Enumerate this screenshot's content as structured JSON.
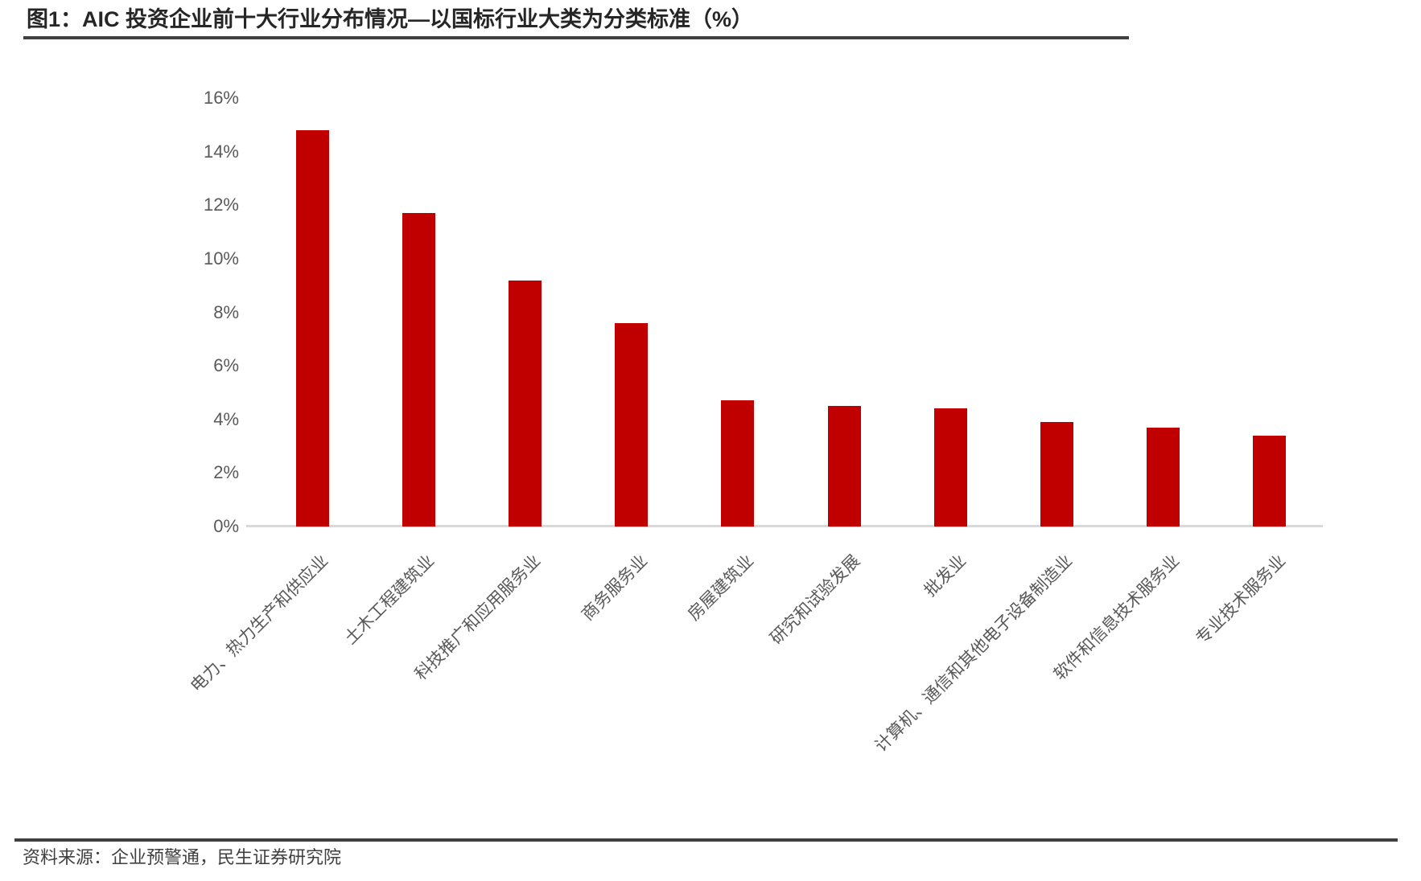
{
  "header": {
    "title": "图1：AIC 投资企业前十大行业分布情况—以国标行业大类为分类标准（%）"
  },
  "footer": {
    "source": "资料来源：企业预警通，民生证券研究院"
  },
  "colors": {
    "bar": "#c00000",
    "axis_line": "#d9d9d9",
    "tick_text": "#595959",
    "title_text": "#262626",
    "rule": "#404040"
  },
  "chart_data": {
    "type": "bar",
    "title": "AIC 投资企业前十大行业分布情况—以国标行业大类为分类标准（%）",
    "categories": [
      "电力、热力生产和供应业",
      "土木工程建筑业",
      "科技推广和应用服务业",
      "商务服务业",
      "房屋建筑业",
      "研究和试验发展",
      "批发业",
      "计算机、通信和其他电子设备制造业",
      "软件和信息技术服务业",
      "专业技术服务业"
    ],
    "values": [
      14.8,
      11.7,
      9.2,
      7.6,
      4.7,
      4.5,
      4.4,
      3.9,
      3.7,
      3.4
    ],
    "xlabel": "",
    "ylabel": "",
    "ylim": [
      0,
      16
    ],
    "ytick_labels": [
      "0%",
      "2%",
      "4%",
      "6%",
      "8%",
      "10%",
      "12%",
      "14%",
      "16%"
    ],
    "grid": false,
    "legend": "none",
    "bar_color": "#c00000",
    "xlabel_rotation_deg": 45
  }
}
